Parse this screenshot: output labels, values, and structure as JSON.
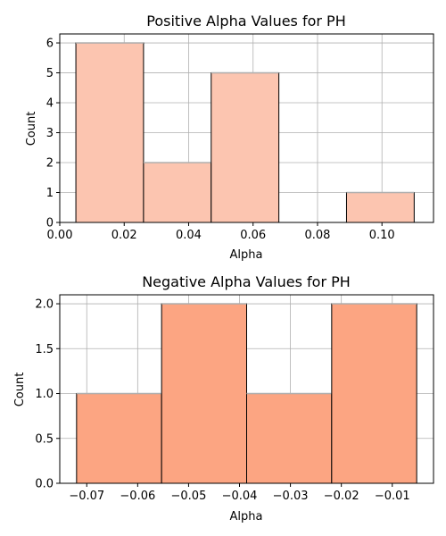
{
  "chart_data": [
    {
      "type": "bar",
      "title": "Positive Alpha Values for PH",
      "xlabel": "Alpha",
      "ylabel": "Count",
      "bin_edges": [
        0.005,
        0.026,
        0.047,
        0.068,
        0.089,
        0.11
      ],
      "values": [
        6,
        2,
        5,
        0,
        1
      ],
      "xlim": [
        0.0,
        0.116
      ],
      "ylim": [
        0,
        6.3
      ],
      "xticks": [
        0.0,
        0.02,
        0.04,
        0.06,
        0.08,
        0.1
      ],
      "xtick_labels": [
        "0.00",
        "0.02",
        "0.04",
        "0.06",
        "0.08",
        "0.10"
      ],
      "yticks": [
        0,
        1,
        2,
        3,
        4,
        5,
        6
      ],
      "ytick_labels": [
        "0",
        "1",
        "2",
        "3",
        "4",
        "5",
        "6"
      ],
      "grid": true,
      "bar_color": "#fcc5b0",
      "edge_color": "#000000"
    },
    {
      "type": "bar",
      "title": "Negative Alpha Values for PH",
      "xlabel": "Alpha",
      "ylabel": "Count",
      "bin_edges": [
        -0.072,
        -0.0553,
        -0.0386,
        -0.0219,
        -0.0052
      ],
      "values": [
        1,
        2,
        1,
        2
      ],
      "xlim": [
        -0.0753,
        -0.0019
      ],
      "ylim": [
        0,
        2.1
      ],
      "xticks": [
        -0.07,
        -0.06,
        -0.05,
        -0.04,
        -0.03,
        -0.02,
        -0.01
      ],
      "xtick_labels": [
        "−0.07",
        "−0.06",
        "−0.05",
        "−0.04",
        "−0.03",
        "−0.02",
        "−0.01"
      ],
      "yticks": [
        0,
        0.5,
        1.0,
        1.5,
        2.0
      ],
      "ytick_labels": [
        "0.0",
        "0.5",
        "1.0",
        "1.5",
        "2.0"
      ],
      "grid": true,
      "bar_color": "#fca582",
      "edge_color": "#000000"
    }
  ]
}
